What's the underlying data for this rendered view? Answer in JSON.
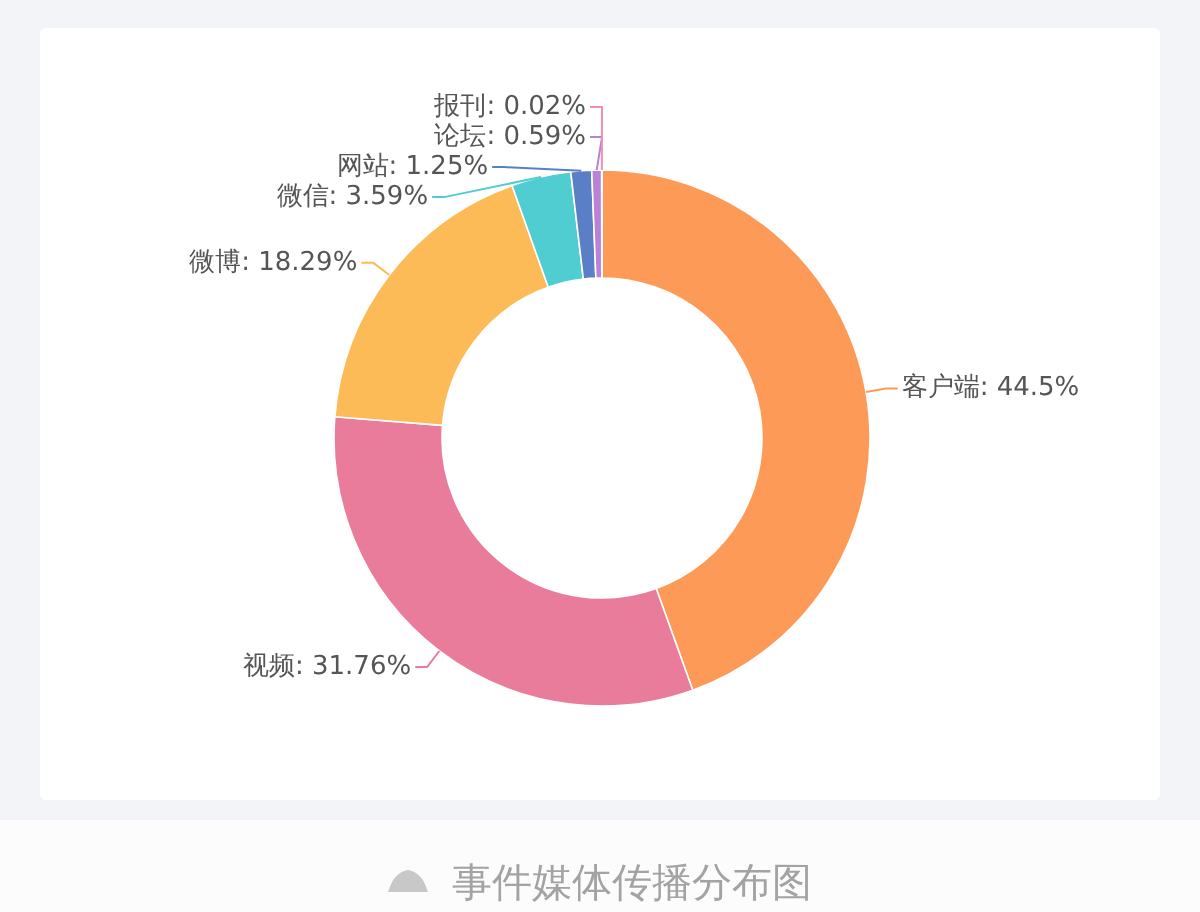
{
  "chart_data": {
    "type": "donut",
    "title": "事件媒体传播分布图",
    "categories": [
      "客户端",
      "视频",
      "微博",
      "微信",
      "网站",
      "论坛",
      "报刊"
    ],
    "values": [
      44.5,
      31.76,
      18.29,
      3.59,
      1.25,
      0.59,
      0.02
    ],
    "value_labels": [
      "44.5%",
      "31.76%",
      "18.29%",
      "3.59%",
      "1.25%",
      "0.59%",
      "0.02%"
    ],
    "colors": [
      "#fe9a57",
      "#e97b9b",
      "#fdbb57",
      "#50cdd0",
      "#5a7fc6",
      "#b982d6",
      "#ef8fb6"
    ]
  }
}
